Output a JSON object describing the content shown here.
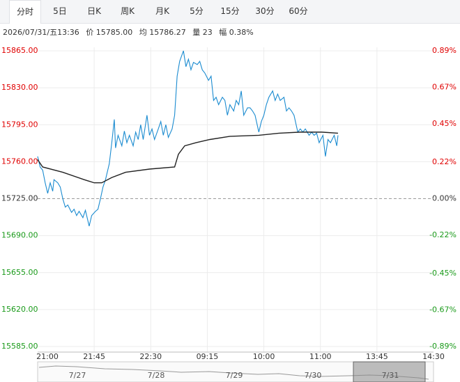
{
  "tabs": [
    "分时",
    "5日",
    "日K",
    "周K",
    "月K",
    "5分",
    "15分",
    "30分",
    "60分"
  ],
  "info": {
    "time": "2026/07/31/五13:36",
    "price": "价 15785.00",
    "avg": "均 15786.27",
    "volume": "量 23",
    "change": "幅 0.38%"
  },
  "navigator": {
    "labels": [
      "7/27",
      "7/28",
      "7/29",
      "7/30",
      "7/31"
    ]
  },
  "chart_data": {
    "type": "line",
    "xlim": [
      0,
      315
    ],
    "xticks": [
      {
        "value": 0,
        "label": "21:00"
      },
      {
        "value": 45,
        "label": "21:45"
      },
      {
        "value": 90,
        "label": "22:30"
      },
      {
        "value": 135,
        "label": "09:15"
      },
      {
        "value": 180,
        "label": "10:00"
      },
      {
        "value": 225,
        "label": "11:00"
      },
      {
        "value": 270,
        "label": "13:45"
      },
      {
        "value": 315,
        "label": "14:30"
      }
    ],
    "ylim": [
      15585,
      15865
    ],
    "yticks": [
      {
        "value": 15865,
        "label": "15865.00"
      },
      {
        "value": 15830,
        "label": "15830.00"
      },
      {
        "value": 15795,
        "label": "15795.00"
      },
      {
        "value": 15760,
        "label": "15760.00"
      },
      {
        "value": 15725,
        "label": "15725.00"
      },
      {
        "value": 15690,
        "label": "15690.00"
      },
      {
        "value": 15655,
        "label": "15655.00"
      },
      {
        "value": 15620,
        "label": "15620.00"
      },
      {
        "value": 15585,
        "label": "15585.00"
      }
    ],
    "y2lim": [
      -0.89,
      0.89
    ],
    "y2ticks": [
      {
        "value": 0.89,
        "label": "0.89%"
      },
      {
        "value": 0.67,
        "label": "0.67%"
      },
      {
        "value": 0.45,
        "label": "0.45%"
      },
      {
        "value": 0.22,
        "label": "0.22%"
      },
      {
        "value": 0,
        "label": "0.00%"
      },
      {
        "value": -0.22,
        "label": "-0.22%"
      },
      {
        "value": -0.45,
        "label": "-0.45%"
      },
      {
        "value": -0.67,
        "label": "-0.67%"
      },
      {
        "value": -0.89,
        "label": "-0.89%"
      }
    ],
    "base_line": 15725,
    "grid": true,
    "up_color": "#e00000",
    "down_color": "#1a9a1a",
    "flat_color": "#333333",
    "series": [
      {
        "color": "#1a8bd0",
        "x": [
          0,
          2,
          4,
          6,
          8,
          10,
          12,
          13,
          16,
          18,
          20,
          22,
          24,
          27,
          29,
          31,
          33,
          36,
          38,
          40,
          41,
          43,
          46,
          48,
          50,
          52,
          54,
          57,
          59,
          61,
          62,
          64,
          67,
          69,
          71,
          73,
          76,
          78,
          80,
          82,
          84,
          87,
          89,
          91,
          93,
          96,
          98,
          100,
          102,
          104,
          107,
          109,
          111,
          113,
          116,
          118,
          120,
          122,
          124,
          127,
          129,
          131,
          133,
          136,
          138,
          140,
          142,
          144,
          147,
          149,
          151,
          153,
          156,
          158,
          160,
          162,
          164,
          167,
          169,
          171,
          173,
          176,
          178,
          180,
          182,
          184,
          187,
          189,
          191,
          193,
          196,
          198,
          200,
          202,
          204,
          207,
          209,
          211,
          213,
          216,
          218,
          220,
          222,
          224,
          227,
          229,
          231,
          233,
          236,
          238,
          239
        ],
        "values": [
          15765,
          15755,
          15752,
          15740,
          15730,
          15740,
          15732,
          15743,
          15740,
          15736,
          15725,
          15717,
          15719,
          15712,
          15715,
          15709,
          15713,
          15707,
          15714,
          15704,
          15699,
          15709,
          15713,
          15715,
          15725,
          15736,
          15743,
          15758,
          15778,
          15800,
          15773,
          15785,
          15775,
          15789,
          15778,
          15785,
          15775,
          15788,
          15781,
          15795,
          15781,
          15804,
          15785,
          15791,
          15781,
          15791,
          15798,
          15785,
          15795,
          15783,
          15791,
          15804,
          15841,
          15855,
          15865,
          15850,
          15857,
          15847,
          15854,
          15852,
          15855,
          15847,
          15844,
          15837,
          15841,
          15818,
          15821,
          15814,
          15821,
          15818,
          15804,
          15814,
          15808,
          15818,
          15814,
          15827,
          15804,
          15811,
          15811,
          15808,
          15804,
          15788,
          15798,
          15804,
          15814,
          15821,
          15827,
          15818,
          15824,
          15818,
          15821,
          15808,
          15811,
          15808,
          15804,
          15788,
          15791,
          15788,
          15791,
          15785,
          15788,
          15785,
          15787,
          15778,
          15785,
          15765,
          15781,
          15778,
          15785,
          15775,
          15785
        ]
      },
      {
        "color": "#222222",
        "x": [
          0,
          4,
          20,
          37,
          45,
          51,
          59,
          70,
          89,
          109,
          112,
          117,
          126,
          137,
          153,
          176,
          192,
          209,
          226,
          239
        ],
        "values": [
          15762,
          15755,
          15750,
          15743,
          15740,
          15740,
          15745,
          15750,
          15753,
          15755,
          15767,
          15775,
          15778,
          15781,
          15784,
          15785,
          15787,
          15788,
          15788,
          15787
        ]
      }
    ]
  }
}
